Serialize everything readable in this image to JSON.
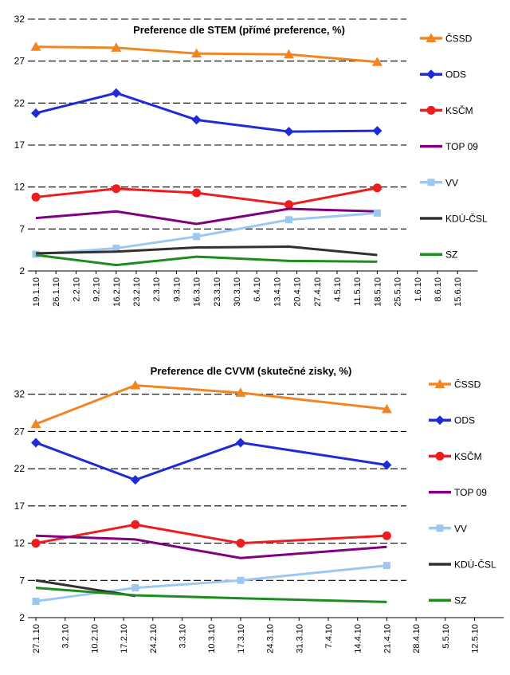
{
  "chart_data": [
    {
      "type": "line",
      "title": "Preference dle STEM (přímé preference, %)",
      "ylim": [
        2,
        32
      ],
      "yticks": [
        2,
        7,
        12,
        17,
        22,
        27,
        32
      ],
      "x_tick_labels": [
        "19.1.10",
        "26.1.10",
        "2.2.10",
        "9.2.10",
        "16.2.10",
        "23.2.10",
        "2.3.10",
        "9.3.10",
        "16.3.10",
        "23.3.10",
        "30.3.10",
        "6.4.10",
        "13.4.10",
        "20.4.10",
        "27.4.10",
        "4.5.10",
        "11.5.10",
        "18.5.10",
        "25.5.10",
        "1.6.10",
        "8.6.10",
        "15.6.10"
      ],
      "x_label_positions": [
        0,
        1,
        2,
        3,
        4,
        5,
        6,
        7,
        8,
        9,
        10,
        11,
        12,
        13,
        14,
        15,
        16,
        17,
        18,
        19,
        20,
        21
      ],
      "series": [
        {
          "name": "ČSSD",
          "color": "#f28522",
          "marker": "triangle",
          "x": [
            0,
            4,
            8,
            12.6,
            17
          ],
          "values": [
            28.7,
            28.6,
            27.9,
            27.8,
            26.9
          ]
        },
        {
          "name": "ODS",
          "color": "#1f2bd6",
          "marker": "diamond",
          "x": [
            0,
            4,
            8,
            12.6,
            17
          ],
          "values": [
            20.8,
            23.2,
            20.0,
            18.6,
            18.7
          ]
        },
        {
          "name": "KSČM",
          "color": "#ee1c1c",
          "marker": "circle",
          "x": [
            0,
            4,
            8,
            12.6,
            17
          ],
          "values": [
            10.8,
            11.8,
            11.3,
            9.9,
            11.9
          ]
        },
        {
          "name": "TOP 09",
          "color": "#800080",
          "marker": "none",
          "x": [
            0,
            4,
            8,
            12.6,
            17
          ],
          "values": [
            8.3,
            9.1,
            7.6,
            9.4,
            9.1
          ]
        },
        {
          "name": "VV",
          "color": "#9bc8f0",
          "marker": "square",
          "x": [
            0,
            4,
            8,
            12.6,
            17
          ],
          "values": [
            4.0,
            4.7,
            6.1,
            8.1,
            8.9
          ]
        },
        {
          "name": "KDÚ-ČSL",
          "color": "#303030",
          "marker": "none",
          "x": [
            0,
            4,
            8,
            12.6,
            17
          ],
          "values": [
            4.1,
            4.3,
            4.8,
            4.9,
            3.9
          ]
        },
        {
          "name": "SZ",
          "color": "#1e8c1e",
          "marker": "none",
          "x": [
            0,
            4,
            8,
            12.6,
            17
          ],
          "values": [
            3.9,
            2.7,
            3.7,
            3.2,
            3.1
          ]
        }
      ]
    },
    {
      "type": "line",
      "title": "Preference dle CVVM (skutečné zisky, %)",
      "ylim": [
        2,
        37
      ],
      "yticks": [
        2,
        7,
        12,
        17,
        22,
        27,
        32
      ],
      "x_tick_labels": [
        "27.1.10",
        "3.2.10",
        "10.2.10",
        "17.2.10",
        "24.2.10",
        "3.3.10",
        "10.3.10",
        "17.3.10",
        "24.3.10",
        "31.3.10",
        "7.4.10",
        "14.4.10",
        "21.4.10",
        "28.4.10",
        "5.5.10",
        "12.5.10"
      ],
      "x_label_positions": [
        0,
        1,
        2,
        3,
        4,
        5,
        6,
        7,
        8,
        9,
        10,
        11,
        12,
        13,
        14,
        15
      ],
      "series": [
        {
          "name": "ČSSD",
          "color": "#f28522",
          "marker": "triangle",
          "x": [
            0,
            3.4,
            7,
            12
          ],
          "values": [
            28.0,
            33.2,
            32.2,
            30.0
          ]
        },
        {
          "name": "ODS",
          "color": "#1f2bd6",
          "marker": "diamond",
          "x": [
            0,
            3.4,
            7,
            12
          ],
          "values": [
            25.5,
            20.5,
            25.5,
            22.5
          ]
        },
        {
          "name": "KSČM",
          "color": "#ee1c1c",
          "marker": "circle",
          "x": [
            0,
            3.4,
            7,
            12
          ],
          "values": [
            12.0,
            14.5,
            12.0,
            13.0
          ]
        },
        {
          "name": "TOP 09",
          "color": "#800080",
          "marker": "none",
          "x": [
            0,
            3.4,
            7,
            12
          ],
          "values": [
            13.0,
            12.5,
            10.0,
            11.5
          ]
        },
        {
          "name": "VV",
          "color": "#9bc8f0",
          "marker": "square",
          "x": [
            0,
            3.4,
            7,
            12
          ],
          "values": [
            4.2,
            6.0,
            7.0,
            9.0
          ]
        },
        {
          "name": "KDÚ-ČSL",
          "color": "#303030",
          "marker": "none",
          "x": [
            0,
            3.4
          ],
          "values": [
            7.0,
            4.9
          ]
        },
        {
          "name": "SZ",
          "color": "#1e8c1e",
          "marker": "none",
          "x": [
            0,
            3.4,
            7,
            12
          ],
          "values": [
            6.0,
            5.0,
            4.6,
            4.1
          ]
        }
      ]
    }
  ]
}
